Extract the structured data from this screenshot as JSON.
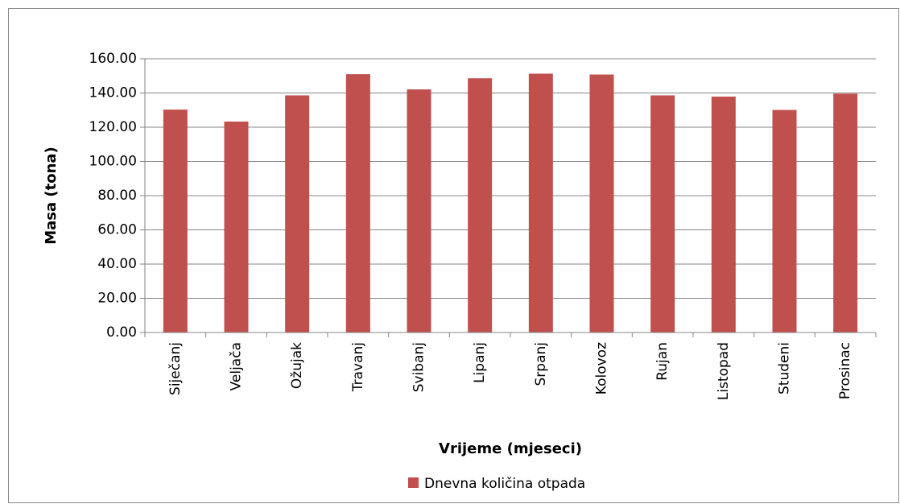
{
  "chart_data": {
    "type": "bar",
    "x_label": "Vrijeme (mjeseci)",
    "y_label": "Masa (tona)",
    "categories": [
      "Siječanj",
      "Veljača",
      "Ožujak",
      "Travanj",
      "Svibanj",
      "Lipanj",
      "Srpanj",
      "Kolovoz",
      "Rujan",
      "Listopad",
      "Studeni",
      "Prosinac"
    ],
    "series": [
      {
        "name": "Dnevna količina otpada",
        "color": "#c0504d",
        "values": [
          130.3,
          123.3,
          138.6,
          151.0,
          142.1,
          148.6,
          151.3,
          150.8,
          138.6,
          137.9,
          130.1,
          139.6
        ]
      }
    ],
    "ylim": [
      0,
      160
    ],
    "yticks": [
      {
        "value": 0,
        "label": "0.00"
      },
      {
        "value": 20,
        "label": "20.00"
      },
      {
        "value": 40,
        "label": "40.00"
      },
      {
        "value": 60,
        "label": "60.00"
      },
      {
        "value": 80,
        "label": "80.00"
      },
      {
        "value": 100,
        "label": "100.00"
      },
      {
        "value": 120,
        "label": "120.00"
      },
      {
        "value": 140,
        "label": "140.00"
      },
      {
        "value": 160,
        "label": "160.00"
      }
    ],
    "grid": true,
    "legend": "bottom"
  }
}
